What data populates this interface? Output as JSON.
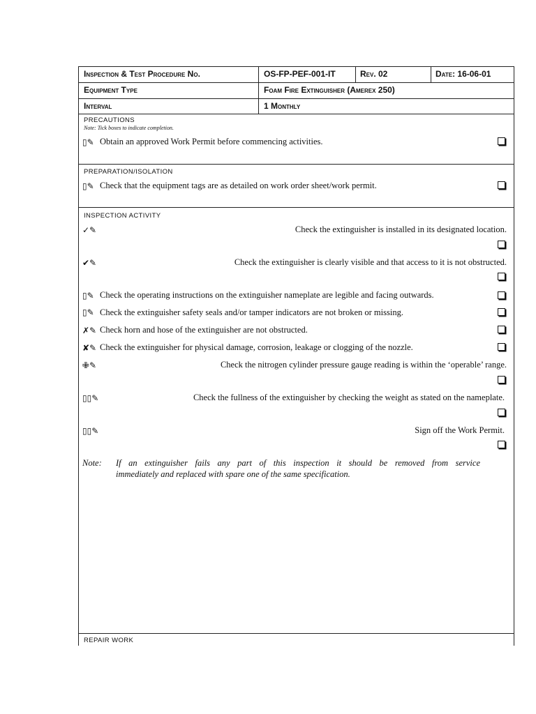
{
  "header": {
    "procedure_label": "Inspection & Test Procedure No.",
    "procedure_no": "OS-FP-PEF-001-IT",
    "rev": "Rev. 02",
    "date": "Date: 16-06-01",
    "equipment_label": "Equipment Type",
    "equipment_value": "Foam Fire Extinguisher (Amerex 250)",
    "interval_label": "Interval",
    "interval_value": "1 Monthly"
  },
  "precautions": {
    "title": "Precautions",
    "note": "Note: Tick boxes to indicate completion.",
    "items": [
      {
        "icon": "pencil-icon",
        "text": "Obtain an approved Work Permit before commencing activities."
      }
    ]
  },
  "preparation": {
    "title": "Preparation/Isolation",
    "items": [
      {
        "icon": "pencil-icon",
        "text": "Check that the equipment tags are as detailed on work order sheet/work permit."
      }
    ]
  },
  "inspection": {
    "title": "Inspection Activity",
    "items": [
      {
        "icon": "check-icon",
        "text": "Check the extinguisher is installed in its designated location."
      },
      {
        "icon": "heavy-check-icon",
        "text": "Check the extinguisher is clearly visible and that access to it is not obstructed."
      },
      {
        "icon": "pencil-icon",
        "text": "Check the operating instructions on the extinguisher nameplate are legible and facing outwards."
      },
      {
        "icon": "pencil-icon",
        "text": "Check the extinguisher safety seals and/or tamper indicators are not broken or missing."
      },
      {
        "icon": "x-icon",
        "text": "Check horn and hose of the extinguisher are not obstructed."
      },
      {
        "icon": "heavy-x-icon",
        "text": "Check the extinguisher for physical damage, corrosion, leakage or clogging of the nozzle."
      },
      {
        "icon": "cross-icon",
        "text": "Check the nitrogen cylinder pressure gauge reading is within the ‘operable’ range."
      },
      {
        "icon": "pencil-icon",
        "text": "Check the fullness of the extinguisher by checking the weight as stated on the nameplate."
      },
      {
        "icon": "pencil-icon",
        "text": "Sign off the Work Permit."
      }
    ],
    "note_label": "Note:",
    "note_text_1": "If an extinguisher fails any part of this inspection it should be removed from service",
    "note_text_2": "immediately and replaced with spare one of the same specification."
  },
  "repair": {
    "title": "Repair Work"
  },
  "glyphs": {
    "pencil": "▯✎",
    "check": "✓✎",
    "heavy_check": "✔✎",
    "x": "✗✎",
    "heavy_x": "✘✎",
    "cross": "✙✎",
    "double": "▯▯✎"
  }
}
